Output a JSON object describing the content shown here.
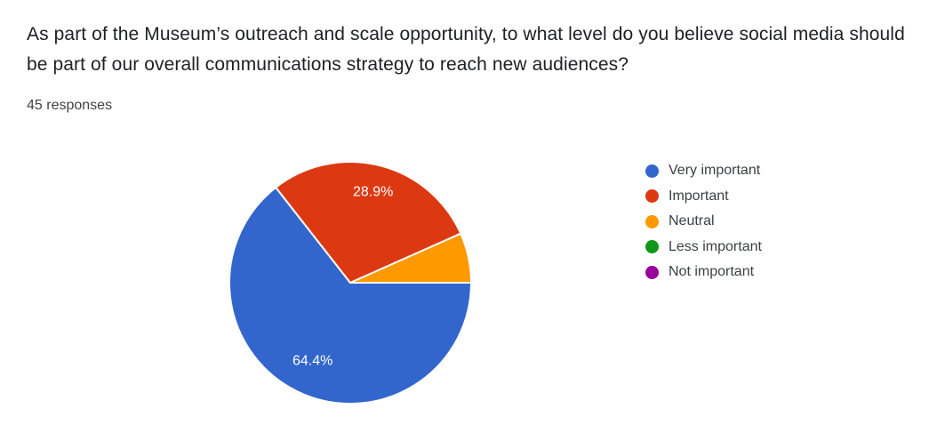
{
  "header": {
    "question": "As part of the Museum’s outreach and scale opportunity, to what level do you believe social media should be part of our overall communications strategy to reach new audiences?",
    "responses_label": "45 responses"
  },
  "text_colors": {
    "title": "#202124",
    "subtitle": "#424242",
    "legend": "#3c4043"
  },
  "chart_data": {
    "type": "pie",
    "title": "As part of the Museum’s outreach and scale opportunity, to what level do you believe social media should be part of our overall communications strategy to reach new audiences?",
    "subtitle": "45 responses",
    "total_responses": 45,
    "legend_position": "right",
    "start_angle_deg": 0,
    "direction": "clockwise",
    "slice_border_color": "#ffffff",
    "slice_label_color": "#ffffff",
    "categories": [
      "Very important",
      "Important",
      "Neutral",
      "Less important",
      "Not important"
    ],
    "values": [
      29,
      13,
      3,
      0,
      0
    ],
    "slices": [
      {
        "label": "Very important",
        "value": 29,
        "percent": 64.4,
        "pct_label": "64.4%",
        "pct_label_visible": true,
        "color": "#3366CC"
      },
      {
        "label": "Important",
        "value": 13,
        "percent": 28.9,
        "pct_label": "28.9%",
        "pct_label_visible": true,
        "color": "#DC3912"
      },
      {
        "label": "Neutral",
        "value": 3,
        "percent": 6.7,
        "pct_label": "",
        "pct_label_visible": false,
        "color": "#FF9900"
      },
      {
        "label": "Less important",
        "value": 0,
        "percent": 0,
        "pct_label": "",
        "pct_label_visible": false,
        "color": "#109618"
      },
      {
        "label": "Not important",
        "value": 0,
        "percent": 0,
        "pct_label": "",
        "pct_label_visible": false,
        "color": "#990099"
      }
    ]
  }
}
